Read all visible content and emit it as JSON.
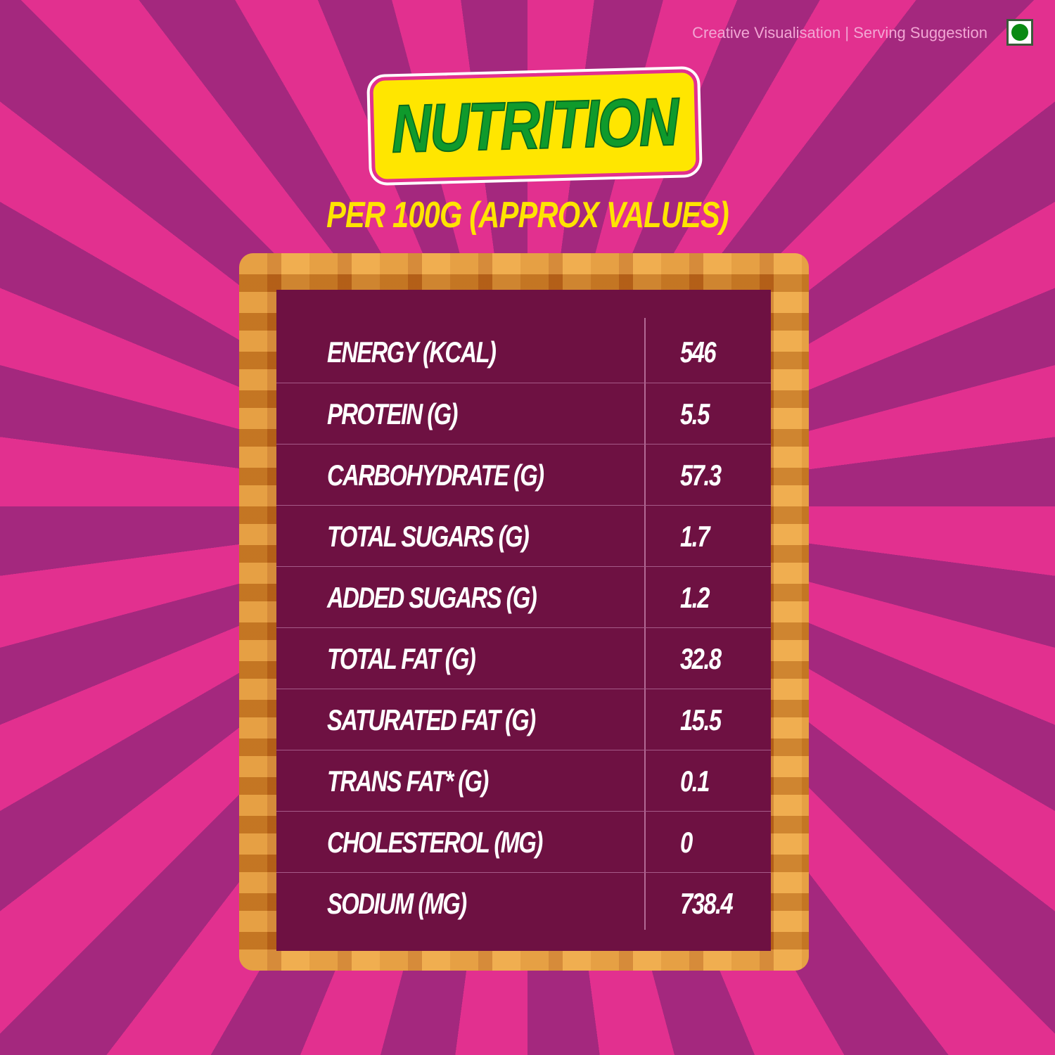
{
  "disclaimer": "Creative Visualisation | Serving Suggestion",
  "veg_mark_icon": "veg-symbol-green-dot",
  "title": "NUTRITION",
  "subtitle": "PER 100G (APPROX VALUES)",
  "colors": {
    "ray_pink": "#e2308f",
    "ray_purple": "#a4287e",
    "table_bg": "#6e1142",
    "title_green": "#0f9a2c",
    "title_bg": "#ffe600",
    "subtitle_yellow": "#ffe400"
  },
  "rows": [
    {
      "label": "ENERGY (KCAL)",
      "value": "546"
    },
    {
      "label": "PROTEIN (G)",
      "value": "5.5"
    },
    {
      "label": "CARBOHYDRATE (G)",
      "value": "57.3"
    },
    {
      "label": " TOTAL SUGARS (G)",
      "value": "1.7"
    },
    {
      "label": "ADDED SUGARS (G)",
      "value": "1.2"
    },
    {
      "label": "TOTAL FAT (G)",
      "value": "32.8"
    },
    {
      "label": "SATURATED FAT (G)",
      "value": "15.5"
    },
    {
      "label": "TRANS FAT* (G)",
      "value": "0.1"
    },
    {
      "label": "CHOLESTEROL (MG)",
      "value": "0"
    },
    {
      "label": "SODIUM (MG)",
      "value": "738.4"
    }
  ]
}
